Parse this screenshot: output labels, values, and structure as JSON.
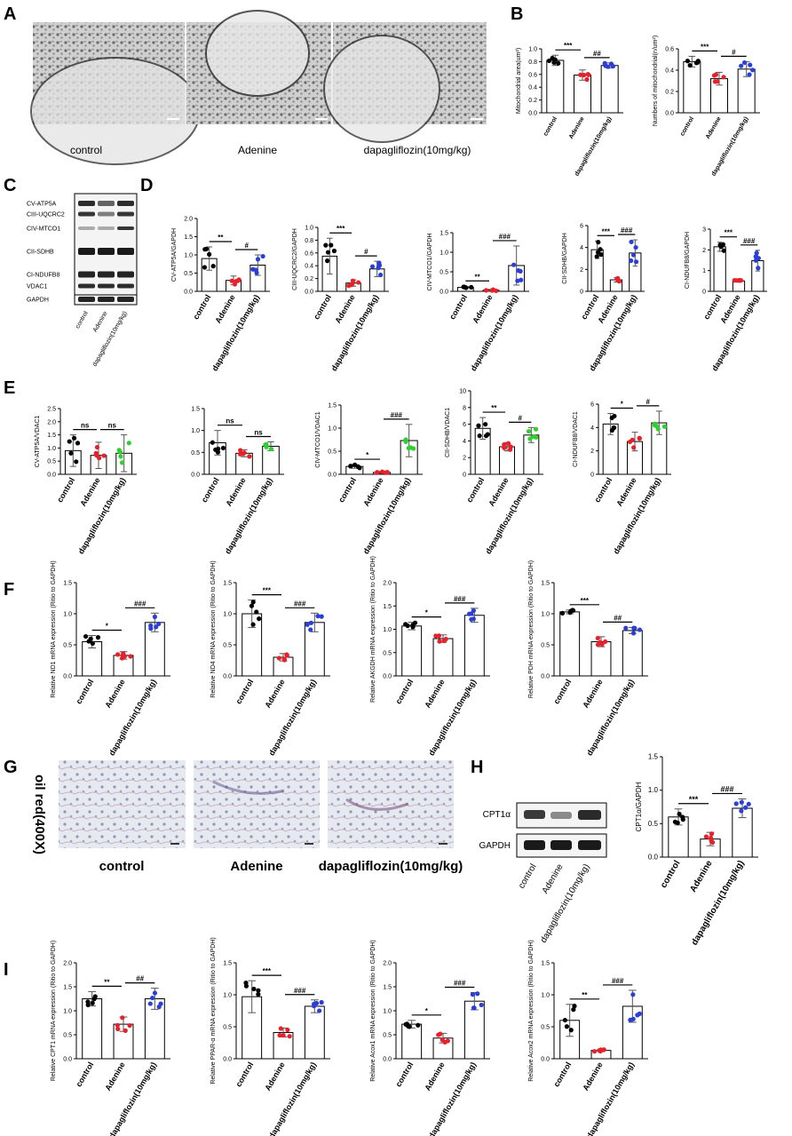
{
  "panel_letters": [
    "A",
    "B",
    "C",
    "D",
    "E",
    "F",
    "G",
    "H",
    "I"
  ],
  "panelA": {
    "captions": [
      "control",
      "Adenine",
      "dapagliflozin(10mg/kg)"
    ]
  },
  "panelC": {
    "bands": [
      "CV-ATP5A",
      "CIII-UQCRC2",
      "CIV-MTCO1",
      "CII-SDHB",
      "CI-NDUFB8",
      "VDAC1",
      "GAPDH"
    ],
    "lanes": [
      "control",
      "Adenine",
      "dapagliflozin(10mg/kg)"
    ]
  },
  "panelG": {
    "side_label": "oil red(400X)",
    "captions": [
      "control",
      "Adenine",
      "dapagliflozin(10mg/kg)"
    ]
  },
  "panelH": {
    "bands": [
      "CPT1α",
      "GAPDH"
    ],
    "lanes": [
      "control",
      "Adenine",
      "dapagliflozin(10mg/kg)"
    ]
  },
  "colors": {
    "control": "#000000",
    "adenine": "#e8202a",
    "dapagliflozin": "#2b3fd6",
    "dapagliflozin_E": "#2fcf2f"
  },
  "chart_data": [
    {
      "id": "B1",
      "type": "bar",
      "categories": [
        "control",
        "Adenine",
        "dapagliflozin(10mg/kg)"
      ],
      "values": [
        0.82,
        0.59,
        0.74
      ],
      "errors": [
        0.08,
        0.08,
        0.04
      ],
      "ylabel": "Mitochondrial area(um²)",
      "ylim": [
        0,
        1.0
      ],
      "yticks": [
        0,
        0.2,
        0.4,
        0.6,
        0.8,
        1.0
      ],
      "tick_labels": [
        "0.0",
        "0.2",
        "0.4",
        "0.6",
        "0.8",
        "1.0"
      ],
      "sig": [
        {
          "a": 0,
          "b": 1,
          "text": "***"
        },
        {
          "a": 1,
          "b": 2,
          "text": "##"
        }
      ]
    },
    {
      "id": "B2",
      "type": "bar",
      "categories": [
        "control",
        "Adenine",
        "dapagliflozin(10mg/kg)"
      ],
      "values": [
        0.48,
        0.32,
        0.41
      ],
      "errors": [
        0.05,
        0.06,
        0.07
      ],
      "ylabel": "Numbers of mitochondrial(n/um²)",
      "ylim": [
        0,
        0.6
      ],
      "yticks": [
        0,
        0.2,
        0.4,
        0.6
      ],
      "tick_labels": [
        "0.0",
        "0.2",
        "0.4",
        "0.6"
      ],
      "sig": [
        {
          "a": 0,
          "b": 1,
          "text": "***"
        },
        {
          "a": 1,
          "b": 2,
          "text": "#"
        }
      ]
    },
    {
      "id": "D1",
      "type": "bar",
      "categories": [
        "control",
        "Adenine",
        "dapagliflozin(10mg/kg)"
      ],
      "values": [
        0.9,
        0.3,
        0.72
      ],
      "errors": [
        0.32,
        0.12,
        0.28
      ],
      "ylabel": "CV-ATP5A/GAPDH",
      "ylim": [
        0,
        2.0
      ],
      "yticks": [
        0,
        0.5,
        1.0,
        1.5,
        2.0
      ],
      "tick_labels": [
        "0.0",
        "0.5",
        "1.0",
        "1.5",
        "2.0"
      ],
      "sig": [
        {
          "a": 0,
          "b": 1,
          "text": "**"
        },
        {
          "a": 1,
          "b": 2,
          "text": "#"
        }
      ]
    },
    {
      "id": "D2",
      "type": "bar",
      "categories": [
        "control",
        "Adenine",
        "dapagliflozin(10mg/kg)"
      ],
      "values": [
        0.55,
        0.13,
        0.35
      ],
      "errors": [
        0.28,
        0.05,
        0.12
      ],
      "ylabel": "CIII-UQCRC2/GAPDH",
      "ylim": [
        0,
        1.0
      ],
      "yticks": [
        0,
        0.2,
        0.4,
        0.6,
        0.8,
        1.0
      ],
      "tick_labels": [
        "0.0",
        "0.2",
        "0.4",
        "0.6",
        "0.8",
        "1.0"
      ],
      "sig": [
        {
          "a": 0,
          "b": 1,
          "text": "***"
        },
        {
          "a": 1,
          "b": 2,
          "text": "#"
        }
      ]
    },
    {
      "id": "D3",
      "type": "bar",
      "categories": [
        "control",
        "Adenine",
        "dapagliflozin(10mg/kg)"
      ],
      "values": [
        0.1,
        0.03,
        0.66
      ],
      "errors": [
        0.03,
        0.02,
        0.5
      ],
      "ylabel": "CIV-MTCO1/GAPDH",
      "ylim": [
        0,
        1.5
      ],
      "yticks": [
        0,
        0.5,
        1.0,
        1.5
      ],
      "tick_labels": [
        "0.0",
        "0.5",
        "1.0",
        "1.5"
      ],
      "sig": [
        {
          "a": 0,
          "b": 1,
          "text": "**"
        },
        {
          "a": 1,
          "b": 2,
          "text": "###"
        }
      ]
    },
    {
      "id": "D4",
      "type": "bar",
      "categories": [
        "control",
        "Adenine",
        "dapagliflozin(10mg/kg)"
      ],
      "values": [
        3.8,
        1.05,
        3.5
      ],
      "errors": [
        0.8,
        0.2,
        1.2
      ],
      "ylabel": "CII-SDHB/GAPDH",
      "ylim": [
        0,
        6
      ],
      "yticks": [
        0,
        2,
        4,
        6
      ],
      "tick_labels": [
        "0",
        "2",
        "4",
        "6"
      ],
      "sig": [
        {
          "a": 0,
          "b": 1,
          "text": "***"
        },
        {
          "a": 1,
          "b": 2,
          "text": "###"
        }
      ]
    },
    {
      "id": "D5",
      "type": "bar",
      "categories": [
        "control",
        "Adenine",
        "dapagliflozin(10mg/kg)"
      ],
      "values": [
        2.15,
        0.5,
        1.48
      ],
      "errors": [
        0.22,
        0.05,
        0.5
      ],
      "ylabel": "CI-NDUFB8/GAPDH",
      "ylim": [
        0,
        3
      ],
      "yticks": [
        0,
        1,
        2,
        3
      ],
      "tick_labels": [
        "0",
        "1",
        "2",
        "3"
      ],
      "sig": [
        {
          "a": 0,
          "b": 1,
          "text": "***"
        },
        {
          "a": 1,
          "b": 2,
          "text": "###"
        }
      ]
    },
    {
      "id": "E1",
      "type": "bar",
      "categories": [
        "control",
        "Adenine",
        "dapagliflozin(10mg/kg)"
      ],
      "values": [
        0.9,
        0.72,
        0.8
      ],
      "errors": [
        0.6,
        0.5,
        0.7
      ],
      "ylabel": "CV-ATP5A/VDAC1",
      "ylim": [
        0,
        2.5
      ],
      "yticks": [
        0,
        0.5,
        1.0,
        1.5,
        2.0,
        2.5
      ],
      "tick_labels": [
        "0.0",
        "0.5",
        "1.0",
        "1.5",
        "2.0",
        "2.5"
      ],
      "sig": [
        {
          "a": 0,
          "b": 1,
          "text": "ns"
        },
        {
          "a": 1,
          "b": 2,
          "text": "ns"
        }
      ]
    },
    {
      "id": "E2",
      "type": "bar",
      "categories": [
        "control",
        "Adenine",
        "dapagliflozin(10mg/kg)"
      ],
      "values": [
        0.72,
        0.48,
        0.64
      ],
      "errors": [
        0.28,
        0.08,
        0.1
      ],
      "ylabel": "",
      "ylim": [
        0,
        1.5
      ],
      "yticks": [
        0,
        0.5,
        1.0,
        1.5
      ],
      "tick_labels": [
        "0.0",
        "0.5",
        "1.0",
        "1.5"
      ],
      "sig": [
        {
          "a": 0,
          "b": 1,
          "text": "ns"
        },
        {
          "a": 1,
          "b": 2,
          "text": "ns"
        }
      ]
    },
    {
      "id": "E3",
      "type": "bar",
      "categories": [
        "control",
        "Adenine",
        "dapagliflozin(10mg/kg)"
      ],
      "values": [
        0.17,
        0.04,
        0.73
      ],
      "errors": [
        0.04,
        0.02,
        0.35
      ],
      "ylabel": "CIV-MTCO1/VDAC1",
      "ylim": [
        0,
        1.5
      ],
      "yticks": [
        0,
        0.5,
        1.0,
        1.5
      ],
      "tick_labels": [
        "0.0",
        "0.5",
        "1.0",
        "1.5"
      ],
      "sig": [
        {
          "a": 0,
          "b": 1,
          "text": "*"
        },
        {
          "a": 1,
          "b": 2,
          "text": "###"
        }
      ]
    },
    {
      "id": "E4",
      "type": "bar",
      "categories": [
        "control",
        "Adenine",
        "dapagliflozin(10mg/kg)"
      ],
      "values": [
        5.5,
        3.3,
        4.7
      ],
      "errors": [
        1.3,
        0.5,
        0.9
      ],
      "ylabel": "CII-SDHB/VDAC1",
      "ylim": [
        0,
        10
      ],
      "yticks": [
        0,
        2,
        4,
        6,
        8,
        10
      ],
      "tick_labels": [
        "0",
        "2",
        "4",
        "6",
        "8",
        "10"
      ],
      "sig": [
        {
          "a": 0,
          "b": 1,
          "text": "**"
        },
        {
          "a": 1,
          "b": 2,
          "text": "#"
        }
      ]
    },
    {
      "id": "E5",
      "type": "bar",
      "categories": [
        "control",
        "Adenine",
        "dapagliflozin(10mg/kg)"
      ],
      "values": [
        4.3,
        2.8,
        4.4
      ],
      "errors": [
        0.9,
        0.8,
        1.0
      ],
      "ylabel": "CI-NDUFB8/VDAC1",
      "ylim": [
        0,
        6
      ],
      "yticks": [
        0,
        2,
        4,
        6
      ],
      "tick_labels": [
        "0",
        "2",
        "4",
        "6"
      ],
      "sig": [
        {
          "a": 0,
          "b": 1,
          "text": "*"
        },
        {
          "a": 1,
          "b": 2,
          "text": "#"
        }
      ]
    },
    {
      "id": "F1",
      "type": "bar",
      "categories": [
        "control",
        "Adenine",
        "dapagliflozin(10mg/kg)"
      ],
      "values": [
        0.55,
        0.33,
        0.86
      ],
      "errors": [
        0.1,
        0.06,
        0.15
      ],
      "ylabel": "Relative ND1 mRNA expression (Ritio to GAPDH)",
      "ylim": [
        0,
        1.5
      ],
      "yticks": [
        0,
        0.5,
        1.0,
        1.5
      ],
      "tick_labels": [
        "0.0",
        "0.5",
        "1.0",
        "1.5"
      ],
      "sig": [
        {
          "a": 0,
          "b": 1,
          "text": "*"
        },
        {
          "a": 1,
          "b": 2,
          "text": "###"
        }
      ]
    },
    {
      "id": "F2",
      "type": "bar",
      "categories": [
        "control",
        "Adenine",
        "dapagliflozin(10mg/kg)"
      ],
      "values": [
        1.0,
        0.3,
        0.86
      ],
      "errors": [
        0.22,
        0.06,
        0.15
      ],
      "ylabel": "Relative ND4 mRNA expression (Ritio to GAPDH)",
      "ylim": [
        0,
        1.5
      ],
      "yticks": [
        0,
        0.5,
        1.0,
        1.5
      ],
      "tick_labels": [
        "0.0",
        "0.5",
        "1.0",
        "1.5"
      ],
      "sig": [
        {
          "a": 0,
          "b": 1,
          "text": "***"
        },
        {
          "a": 1,
          "b": 2,
          "text": "###"
        }
      ]
    },
    {
      "id": "F3",
      "type": "bar",
      "categories": [
        "control",
        "Adenine",
        "dapagliflozin(10mg/kg)"
      ],
      "values": [
        1.07,
        0.8,
        1.3
      ],
      "errors": [
        0.08,
        0.08,
        0.15
      ],
      "ylabel": "Relative AKGDH mRNA expression (Ritio to GAPDH)",
      "ylim": [
        0,
        2.0
      ],
      "yticks": [
        0,
        0.5,
        1.0,
        1.5,
        2.0
      ],
      "tick_labels": [
        "0.0",
        "0.5",
        "1.0",
        "1.5",
        "2.0"
      ],
      "sig": [
        {
          "a": 0,
          "b": 1,
          "text": "*"
        },
        {
          "a": 1,
          "b": 2,
          "text": "###"
        }
      ]
    },
    {
      "id": "F4",
      "type": "bar",
      "categories": [
        "control",
        "Adenine",
        "dapagliflozin(10mg/kg)"
      ],
      "values": [
        1.03,
        0.55,
        0.73
      ],
      "errors": [
        0.03,
        0.08,
        0.05
      ],
      "ylabel": "Relative PDH mRNA expression (Ritio to GAPDH)",
      "ylim": [
        0,
        1.5
      ],
      "yticks": [
        0,
        0.5,
        1.0,
        1.5
      ],
      "tick_labels": [
        "0.0",
        "0.5",
        "1.0",
        "1.5"
      ],
      "sig": [
        {
          "a": 0,
          "b": 1,
          "text": "***"
        },
        {
          "a": 1,
          "b": 2,
          "text": "##"
        }
      ]
    },
    {
      "id": "H1",
      "type": "bar",
      "categories": [
        "control",
        "Adenine",
        "dapagliflozin(10mg/kg)"
      ],
      "values": [
        0.6,
        0.27,
        0.73
      ],
      "errors": [
        0.12,
        0.1,
        0.14
      ],
      "ylabel": "CPT1α/GAPDH",
      "ylim": [
        0,
        1.5
      ],
      "yticks": [
        0,
        0.5,
        1.0,
        1.5
      ],
      "tick_labels": [
        "0.0",
        "0.5",
        "1.0",
        "1.5"
      ],
      "sig": [
        {
          "a": 0,
          "b": 1,
          "text": "***"
        },
        {
          "a": 1,
          "b": 2,
          "text": "###"
        }
      ]
    },
    {
      "id": "I1",
      "type": "bar",
      "categories": [
        "control",
        "Adenine",
        "dapagliflozin(10mg/kg)"
      ],
      "values": [
        1.25,
        0.72,
        1.25
      ],
      "errors": [
        0.15,
        0.15,
        0.22
      ],
      "ylabel": "Relative CPT1 mRNA expression (Ritio to GAPDH)",
      "ylim": [
        0,
        2.0
      ],
      "yticks": [
        0,
        0.5,
        1.0,
        1.5,
        2.0
      ],
      "tick_labels": [
        "0.0",
        "0.5",
        "1.0",
        "1.5",
        "2.0"
      ],
      "sig": [
        {
          "a": 0,
          "b": 1,
          "text": "**"
        },
        {
          "a": 1,
          "b": 2,
          "text": "##"
        }
      ]
    },
    {
      "id": "I2",
      "type": "bar",
      "categories": [
        "control",
        "Adenine",
        "dapagliflozin(10mg/kg)"
      ],
      "values": [
        0.97,
        0.41,
        0.82
      ],
      "errors": [
        0.25,
        0.07,
        0.1
      ],
      "ylabel": "Relative PPAR-α mRNA expression (Ritio to GAPDH)",
      "ylim": [
        0,
        1.5
      ],
      "yticks": [
        0,
        0.5,
        1.0,
        1.5
      ],
      "tick_labels": [
        "0.0",
        "0.5",
        "1.0",
        "1.5"
      ],
      "sig": [
        {
          "a": 0,
          "b": 1,
          "text": "***"
        },
        {
          "a": 1,
          "b": 2,
          "text": "###"
        }
      ]
    },
    {
      "id": "I3",
      "type": "bar",
      "categories": [
        "control",
        "Adenine",
        "dapagliflozin(10mg/kg)"
      ],
      "values": [
        0.72,
        0.43,
        1.2
      ],
      "errors": [
        0.08,
        0.1,
        0.18
      ],
      "ylabel": "Relative Acox1 mRNA expression (Ritio to GAPDH)",
      "ylim": [
        0,
        2.0
      ],
      "yticks": [
        0,
        0.5,
        1.0,
        1.5,
        2.0
      ],
      "tick_labels": [
        "0.0",
        "0.5",
        "1.0",
        "1.5",
        "2.0"
      ],
      "sig": [
        {
          "a": 0,
          "b": 1,
          "text": "*"
        },
        {
          "a": 1,
          "b": 2,
          "text": "###"
        }
      ]
    },
    {
      "id": "I4",
      "type": "bar",
      "categories": [
        "control",
        "Adenine",
        "dapagliflozin(10mg/kg)"
      ],
      "values": [
        0.6,
        0.13,
        0.82
      ],
      "errors": [
        0.25,
        0.02,
        0.25
      ],
      "ylabel": "Relative Acox2 mRNA expression (Ritio to GAPDH)",
      "ylim": [
        0,
        1.5
      ],
      "yticks": [
        0,
        0.5,
        1.0,
        1.5
      ],
      "tick_labels": [
        "0.0",
        "0.5",
        "1.0",
        "1.5"
      ],
      "sig": [
        {
          "a": 0,
          "b": 1,
          "text": "**"
        },
        {
          "a": 1,
          "b": 2,
          "text": "###"
        }
      ]
    }
  ]
}
